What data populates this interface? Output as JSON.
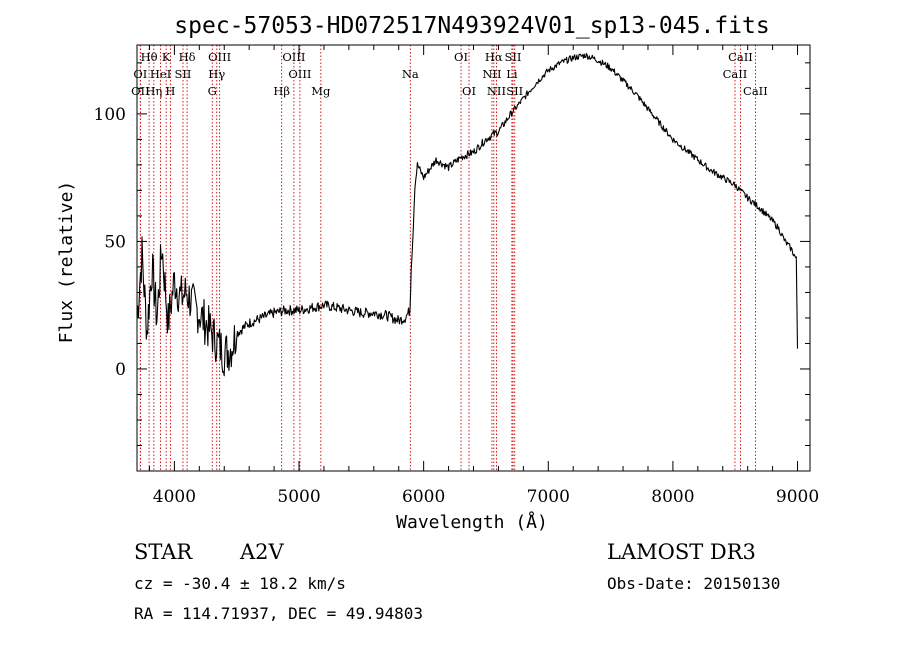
{
  "chart_data": {
    "type": "line",
    "title": "spec-57053-HD072517N493924V01_sp13-045.fits",
    "xlabel": "Wavelength (Å)",
    "ylabel": "Flux (relative)",
    "xlim": [
      3700,
      9100
    ],
    "ylim": [
      -40,
      127
    ],
    "xticks": [
      4000,
      5000,
      6000,
      7000,
      8000,
      9000
    ],
    "xtick_labels": [
      "4000",
      "5000",
      "6000",
      "7000",
      "8000",
      "9000"
    ],
    "yticks": [
      0,
      50,
      100
    ],
    "ytick_labels": [
      "0",
      "50",
      "100"
    ],
    "grid": false,
    "series": [
      {
        "x": [
          3700,
          3740,
          3780,
          3820,
          3860,
          3900,
          3950,
          4000,
          4050,
          4100,
          4150,
          4200,
          4250,
          4300,
          4350,
          4400,
          4450,
          4500,
          4600,
          4700,
          4800,
          4900,
          5000,
          5100,
          5200,
          5300,
          5400,
          5500,
          5600,
          5700,
          5800,
          5850,
          5890,
          5900,
          5910,
          5930,
          5950,
          6000,
          6100,
          6200,
          6300,
          6400,
          6500,
          6560,
          6600,
          6700,
          6800,
          6900,
          7000,
          7100,
          7200,
          7300,
          7400,
          7500,
          7600,
          7700,
          7800,
          7900,
          8000,
          8100,
          8200,
          8300,
          8400,
          8500,
          8600,
          8700,
          8800,
          8850,
          8900,
          8950,
          8990,
          9000
        ],
        "y": [
          20,
          45,
          15,
          40,
          20,
          48,
          18,
          35,
          28,
          30,
          25,
          22,
          18,
          14,
          10,
          6,
          8,
          14,
          18,
          20,
          22,
          23,
          23,
          24,
          25,
          24,
          23,
          22,
          22,
          21,
          19,
          20,
          23,
          40,
          48,
          72,
          80,
          75,
          82,
          79,
          83,
          85,
          90,
          92,
          93,
          100,
          106,
          112,
          117,
          120,
          122,
          123,
          121,
          118,
          113,
          108,
          102,
          96,
          90,
          86,
          82,
          78,
          75,
          72,
          67,
          63,
          58,
          55,
          50,
          47,
          43,
          8
        ]
      }
    ],
    "spectral_lines": [
      {
        "label": "Hθ",
        "wavelength": 3797,
        "row": 0
      },
      {
        "label": "K",
        "wavelength": 3934,
        "row": 0
      },
      {
        "label": "Hδ",
        "wavelength": 4102,
        "row": 0
      },
      {
        "label": "OIII",
        "wavelength": 4363,
        "row": 0
      },
      {
        "label": "OIII",
        "wavelength": 4959,
        "row": 0
      },
      {
        "label": "OI",
        "wavelength": 3727,
        "row": 1
      },
      {
        "label": "HeI",
        "wavelength": 3889,
        "row": 1
      },
      {
        "label": "SII",
        "wavelength": 4069,
        "row": 1
      },
      {
        "label": "Hγ",
        "wavelength": 4340,
        "row": 1
      },
      {
        "label": "OIII",
        "wavelength": 5007,
        "row": 1
      },
      {
        "label": "OII",
        "wavelength": 3727,
        "row": 2
      },
      {
        "label": "Hη",
        "wavelength": 3835,
        "row": 2
      },
      {
        "label": "H",
        "wavelength": 3968,
        "row": 2
      },
      {
        "label": "G",
        "wavelength": 4304,
        "row": 2
      },
      {
        "label": "Hβ",
        "wavelength": 4861,
        "row": 2
      },
      {
        "label": "Mg",
        "wavelength": 5175,
        "row": 2
      },
      {
        "label": "Na",
        "wavelength": 5893,
        "row": 1
      },
      {
        "label": "OI",
        "wavelength": 6300,
        "row": 0
      },
      {
        "label": "OI",
        "wavelength": 6364,
        "row": 2
      },
      {
        "label": "Hα",
        "wavelength": 6563,
        "row": 0
      },
      {
        "label": "SII",
        "wavelength": 6717,
        "row": 0
      },
      {
        "label": "NII",
        "wavelength": 6548,
        "row": 1
      },
      {
        "label": "Li",
        "wavelength": 6708,
        "row": 1
      },
      {
        "label": "NII",
        "wavelength": 6584,
        "row": 2
      },
      {
        "label": "SII",
        "wavelength": 6731,
        "row": 2
      },
      {
        "label": "CaII",
        "wavelength": 8542,
        "row": 0
      },
      {
        "label": "CaII",
        "wavelength": 8498,
        "row": 1
      },
      {
        "label": "CaII",
        "wavelength": 8662,
        "row": 2
      }
    ]
  },
  "info": {
    "object_class": "STAR",
    "subclass": "A2V",
    "survey": "LAMOST DR3",
    "cz": "cz = -30.4 ± 18.2 km/s",
    "obs_date": "Obs-Date: 20150130",
    "coords": "RA = 114.71937, DEC =  49.94803"
  }
}
